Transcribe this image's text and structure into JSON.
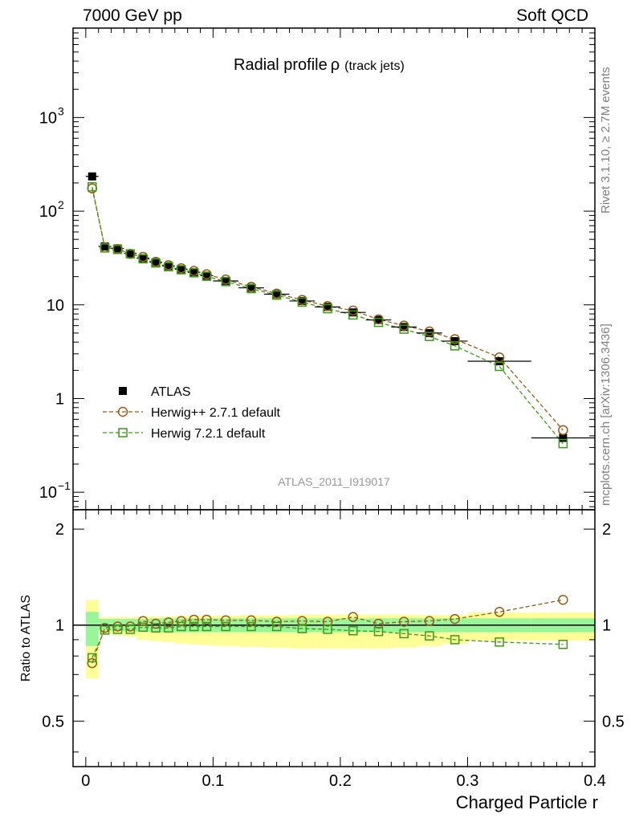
{
  "header": {
    "left": "7000 GeV pp",
    "right": "Soft QCD"
  },
  "side_labels": {
    "rivet": "Rivet 3.1.10, ≥ 2.7M events",
    "mcplots": "mcplots.cern.ch [arXiv:1306.3436]"
  },
  "chart_data": {
    "type": "scatter",
    "title": "Radial profile",
    "title_symbol": "ρ",
    "title_suffix": "(track jets)",
    "analysis_id": "ATLAS_2011_I919017",
    "xlabel": "Charged Particle r",
    "ratio_ylabel": "Ratio to ATLAS",
    "xlim": [
      -0.01,
      0.4
    ],
    "ylim_main": [
      0.065,
      9000
    ],
    "yscale_main": "log",
    "ylim_ratio": [
      0.36,
      2.3
    ],
    "yscale_ratio": "log",
    "x_ticks": [
      {
        "v": 0,
        "label": "0"
      },
      {
        "v": 0.1,
        "label": "0.1"
      },
      {
        "v": 0.2,
        "label": "0.2"
      },
      {
        "v": 0.3,
        "label": "0.3"
      },
      {
        "v": 0.4,
        "label": "0.4"
      }
    ],
    "main_ticks": [
      {
        "v": 0.1,
        "base": "10",
        "exp": "−1"
      },
      {
        "v": 1,
        "base": "1",
        "exp": ""
      },
      {
        "v": 10,
        "base": "10",
        "exp": ""
      },
      {
        "v": 100,
        "base": "10",
        "exp": "2"
      },
      {
        "v": 1000,
        "base": "10",
        "exp": "3"
      }
    ],
    "ratio_ticks": [
      {
        "v": 0.5,
        "label": "0.5"
      },
      {
        "v": 1,
        "label": "1"
      },
      {
        "v": 2,
        "label": "2"
      }
    ],
    "legend_position": "bottom-left",
    "x": [
      0.005,
      0.015,
      0.025,
      0.035,
      0.045,
      0.055,
      0.065,
      0.075,
      0.085,
      0.095,
      0.11,
      0.13,
      0.15,
      0.17,
      0.19,
      0.21,
      0.23,
      0.25,
      0.27,
      0.29,
      0.325,
      0.375
    ],
    "x_err": [
      0.005,
      0.005,
      0.005,
      0.005,
      0.005,
      0.005,
      0.005,
      0.005,
      0.005,
      0.005,
      0.01,
      0.01,
      0.01,
      0.01,
      0.01,
      0.01,
      0.01,
      0.01,
      0.01,
      0.01,
      0.025,
      0.025
    ],
    "series": [
      {
        "name": "ATLAS",
        "color": "#000000",
        "marker": "filled-square",
        "values": [
          235,
          42,
          40,
          35.5,
          31.5,
          28.5,
          26,
          24,
          22.3,
          20.5,
          18,
          15.2,
          13,
          11,
          9.5,
          8.3,
          6.9,
          5.8,
          5.0,
          4.1,
          2.5,
          0.38
        ]
      },
      {
        "name": "Herwig++ 2.7.1 default",
        "color": "#9a5a14",
        "marker": "open-circle",
        "values": [
          175,
          41,
          39.5,
          35,
          32.5,
          28.8,
          26.5,
          24.6,
          23,
          21.2,
          18.6,
          15.6,
          13.2,
          11.3,
          9.7,
          8.7,
          7,
          6,
          5.2,
          4.3,
          2.75,
          0.46
        ],
        "ratio": [
          0.76,
          0.98,
          0.99,
          0.99,
          1.03,
          1.01,
          1.02,
          1.03,
          1.04,
          1.04,
          1.035,
          1.035,
          1.025,
          1.03,
          1.025,
          1.06,
          1.01,
          1.025,
          1.03,
          1.045,
          1.1,
          1.2
        ]
      },
      {
        "name": "Herwig 7.2.1 default",
        "color": "#3c9a14",
        "marker": "open-square",
        "values": [
          182,
          40.5,
          39,
          35,
          31,
          28,
          25.5,
          23.7,
          22,
          20.2,
          17.7,
          14.9,
          12.7,
          10.7,
          9.1,
          7.8,
          6.5,
          5.5,
          4.6,
          3.65,
          2.2,
          0.33
        ],
        "ratio": [
          0.79,
          0.965,
          0.97,
          0.97,
          0.985,
          0.98,
          0.98,
          0.99,
          0.99,
          0.99,
          0.99,
          0.99,
          0.99,
          0.975,
          0.97,
          0.96,
          0.955,
          0.94,
          0.925,
          0.9,
          0.885,
          0.87
        ]
      }
    ],
    "ratio_bands": {
      "inner_color": "#99f599",
      "outer_color": "#fefe99",
      "inner_lo": [
        0.86,
        0.965,
        0.96,
        0.955,
        0.955,
        0.95,
        0.95,
        0.95,
        0.95,
        0.95,
        0.95,
        0.95,
        0.95,
        0.95,
        0.95,
        0.95,
        0.95,
        0.95,
        0.95,
        0.95,
        0.95,
        0.95
      ],
      "inner_hi": [
        1.1,
        1.045,
        1.045,
        1.045,
        1.045,
        1.05,
        1.05,
        1.05,
        1.05,
        1.05,
        1.05,
        1.05,
        1.05,
        1.05,
        1.05,
        1.05,
        1.05,
        1.05,
        1.05,
        1.05,
        1.05,
        1.05
      ],
      "outer_lo": [
        0.68,
        0.945,
        0.93,
        0.92,
        0.9,
        0.89,
        0.885,
        0.875,
        0.87,
        0.865,
        0.86,
        0.855,
        0.85,
        0.845,
        0.845,
        0.845,
        0.845,
        0.85,
        0.86,
        0.875,
        0.895,
        0.895
      ],
      "outer_hi": [
        1.2,
        1.06,
        1.06,
        1.06,
        1.065,
        1.065,
        1.065,
        1.07,
        1.07,
        1.07,
        1.07,
        1.075,
        1.075,
        1.08,
        1.08,
        1.08,
        1.08,
        1.08,
        1.075,
        1.075,
        1.095,
        1.095
      ]
    }
  }
}
